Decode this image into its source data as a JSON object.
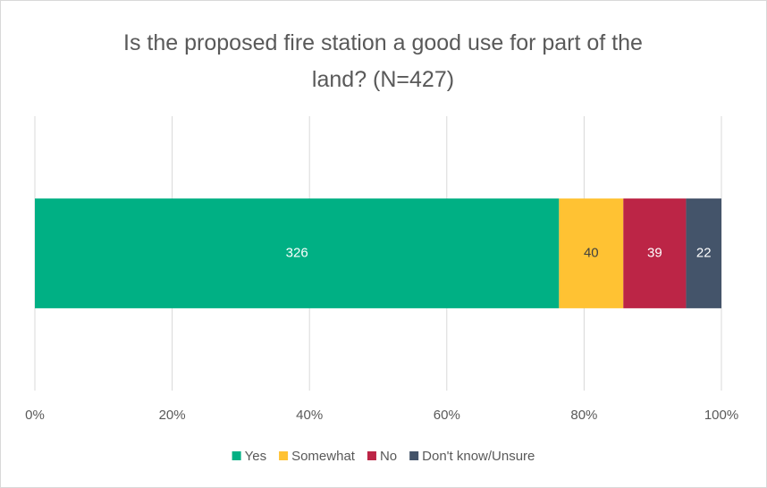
{
  "chart_data": {
    "type": "bar",
    "orientation": "horizontal",
    "stacking": "percent",
    "title": "Is the proposed fire station a good use for part of the land? (N=427)",
    "categories": [
      null
    ],
    "series": [
      {
        "name": "Yes",
        "color": "#00b084",
        "values": [
          326
        ]
      },
      {
        "name": "Somewhat",
        "color": "#ffc233",
        "values": [
          40
        ]
      },
      {
        "name": "No",
        "color": "#bc2546",
        "values": [
          39
        ]
      },
      {
        "name": "Don't know/Unsure",
        "color": "#44546a",
        "values": [
          22
        ]
      }
    ],
    "xlim": [
      0,
      100
    ],
    "xticks": [
      {
        "value": 0,
        "label": "0%"
      },
      {
        "value": 20,
        "label": "20%"
      },
      {
        "value": 40,
        "label": "40%"
      },
      {
        "value": 60,
        "label": "60%"
      },
      {
        "value": 80,
        "label": "80%"
      },
      {
        "value": 100,
        "label": "100%"
      }
    ],
    "grid": true,
    "legend": "bottom"
  }
}
